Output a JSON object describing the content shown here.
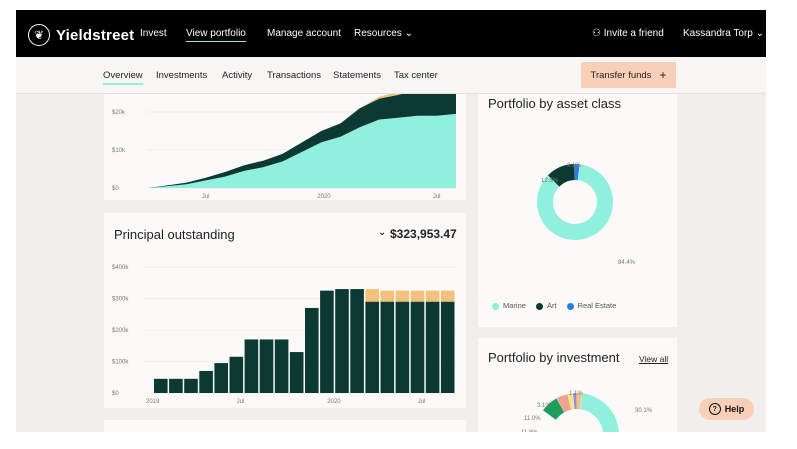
{
  "nav": {
    "brand": "Yieldstreet",
    "items": [
      "Invest",
      "View portfolio",
      "Manage account",
      "Resources"
    ],
    "invite": "Invite a friend",
    "user": "Kassandra Torp"
  },
  "subnav": {
    "tabs": [
      "Overview",
      "Investments",
      "Activity",
      "Transactions",
      "Statements",
      "Tax center"
    ],
    "transfer_label": "Transfer funds",
    "transfer_icon": "+"
  },
  "chart1": {
    "yticks": [
      "$20k",
      "$10k",
      "$0"
    ],
    "xticks": [
      "Jul",
      "2020",
      "Jul"
    ]
  },
  "principal": {
    "title": "Principal outstanding",
    "value": "$323,953.47",
    "yticks": [
      "$400k",
      "$300k",
      "$200k",
      "$100k",
      "$0"
    ],
    "xticks": [
      "2019",
      "Jul",
      "2020",
      "Jul"
    ]
  },
  "asset": {
    "title": "Portfolio by asset class",
    "labels": [
      "2.1%",
      "12.5%",
      "84.4%"
    ],
    "legend": [
      "Marine",
      "Art",
      "Real Estate"
    ]
  },
  "investment": {
    "title": "Portfolio by investment",
    "view_all": "View all",
    "labels": [
      "1.1%",
      "3.1%",
      "11.0%",
      "11.8%",
      "30.1%"
    ]
  },
  "help": {
    "label": "Help",
    "icon": "?"
  },
  "colors": {
    "mint": "#8ff0dd",
    "dark": "#0c3a33",
    "gold": "#f2c27a",
    "blue": "#2a7de1",
    "peach": "#f8cfb7"
  },
  "chart_data": [
    {
      "type": "area",
      "x": [
        "2019-04",
        "2019-05",
        "2019-06",
        "2019-07",
        "2019-08",
        "2019-09",
        "2019-10",
        "2019-11",
        "2019-12",
        "2020-01",
        "2020-02",
        "2020-03",
        "2020-04",
        "2020-05",
        "2020-06",
        "2020-07",
        "2020-08"
      ],
      "series": [
        {
          "values": [
            0,
            500,
            1000,
            2000,
            3000,
            4500,
            5500,
            7000,
            9500,
            12000,
            13500,
            16000,
            18000,
            18500,
            19000,
            19000,
            19500
          ]
        },
        {
          "values": [
            0,
            200,
            400,
            700,
            1200,
            1500,
            1700,
            2000,
            2500,
            3000,
            3500,
            5000,
            5500,
            6000,
            7000,
            7500,
            8000
          ]
        },
        {
          "values": [
            0,
            0,
            0,
            0,
            0,
            0,
            0,
            0,
            0,
            0,
            0,
            0,
            500,
            800,
            1200,
            1500,
            1800
          ]
        }
      ],
      "ylim": [
        0,
        30000
      ]
    },
    {
      "type": "bar",
      "categories": [
        "2019-01",
        "2019-02",
        "2019-03",
        "2019-04",
        "2019-05",
        "2019-06",
        "2019-07",
        "2019-08",
        "2019-09",
        "2019-10",
        "2019-11",
        "2019-12",
        "2020-01",
        "2020-02",
        "2020-03",
        "2020-04",
        "2020-05",
        "2020-06",
        "2020-07",
        "2020-08"
      ],
      "series": [
        {
          "values": [
            45000,
            45000,
            45000,
            70000,
            95000,
            115000,
            170000,
            170000,
            170000,
            130000,
            270000,
            325000,
            330000,
            330000,
            290000,
            290000,
            290000,
            290000,
            290000,
            290000
          ]
        },
        {
          "values": [
            0,
            0,
            0,
            0,
            0,
            0,
            0,
            0,
            0,
            0,
            0,
            0,
            0,
            0,
            40000,
            35000,
            35000,
            35000,
            35000,
            35000
          ]
        }
      ],
      "ylim": [
        0,
        400000
      ]
    },
    {
      "type": "pie",
      "categories": [
        "Marine",
        "Art",
        "Real Estate"
      ],
      "values": [
        84.4,
        12.5,
        2.1
      ]
    }
  ]
}
